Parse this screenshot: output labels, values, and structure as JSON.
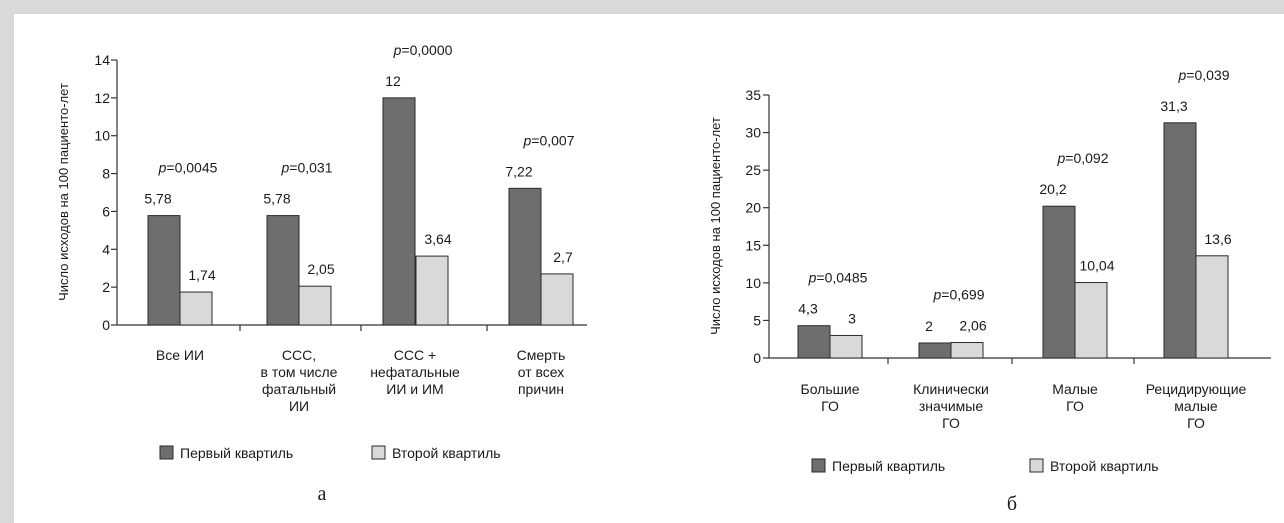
{
  "colors": {
    "first_quartile": "#6e6e6e",
    "second_quartile": "#d9d9d9",
    "bar_stroke": "#2a2a2a",
    "axis": "#333333"
  },
  "chart_data": [
    {
      "type": "bar",
      "panel_label": "а",
      "ylabel": "Число исходов на 100 пациенто-лет",
      "ylim": [
        0,
        14
      ],
      "yticks": [
        0,
        2,
        4,
        6,
        8,
        10,
        12,
        14
      ],
      "grid": false,
      "legend_position": "bottom",
      "categories": [
        [
          "Все ИИ"
        ],
        [
          "ССС,",
          "в том числе",
          "фатальный",
          "ИИ"
        ],
        [
          "ССС +",
          "нефатальные",
          "ИИ и ИМ"
        ],
        [
          "Смерть",
          "от всех",
          "причин"
        ]
      ],
      "series": [
        {
          "name": "Первый квартиль",
          "values": [
            5.78,
            5.78,
            12,
            7.22
          ],
          "labels": [
            "5,78",
            "5,78",
            "12",
            "7,22"
          ]
        },
        {
          "name": "Второй квартиль",
          "values": [
            1.74,
            2.05,
            3.64,
            2.7
          ],
          "labels": [
            "1,74",
            "2,05",
            "3,64",
            "2,7"
          ]
        }
      ],
      "p_values": [
        "=0,0045",
        "=0,031",
        "=0,0000",
        "=0,007"
      ]
    },
    {
      "type": "bar",
      "panel_label": "б",
      "ylabel": "Число исходов на 100 пациенто-лет",
      "ylim": [
        0,
        35
      ],
      "yticks": [
        0,
        5,
        10,
        15,
        20,
        25,
        30,
        35
      ],
      "grid": false,
      "legend_position": "bottom",
      "categories": [
        [
          "Большие",
          "ГО"
        ],
        [
          "Клинически",
          "значимые",
          "ГО"
        ],
        [
          "Малые",
          "ГО"
        ],
        [
          "Рецидирующие",
          "малые",
          "ГО"
        ]
      ],
      "series": [
        {
          "name": "Первый квартиль",
          "values": [
            4.3,
            2,
            20.2,
            31.3
          ],
          "labels": [
            "4,3",
            "2",
            "20,2",
            "31,3"
          ]
        },
        {
          "name": "Второй квартиль",
          "values": [
            3,
            2.06,
            10.04,
            13.6
          ],
          "labels": [
            "3",
            "2,06",
            "10,04",
            "13,6"
          ]
        }
      ],
      "p_values": [
        "=0,0485",
        "=0,699",
        "=0,092",
        "=0,039"
      ]
    }
  ]
}
